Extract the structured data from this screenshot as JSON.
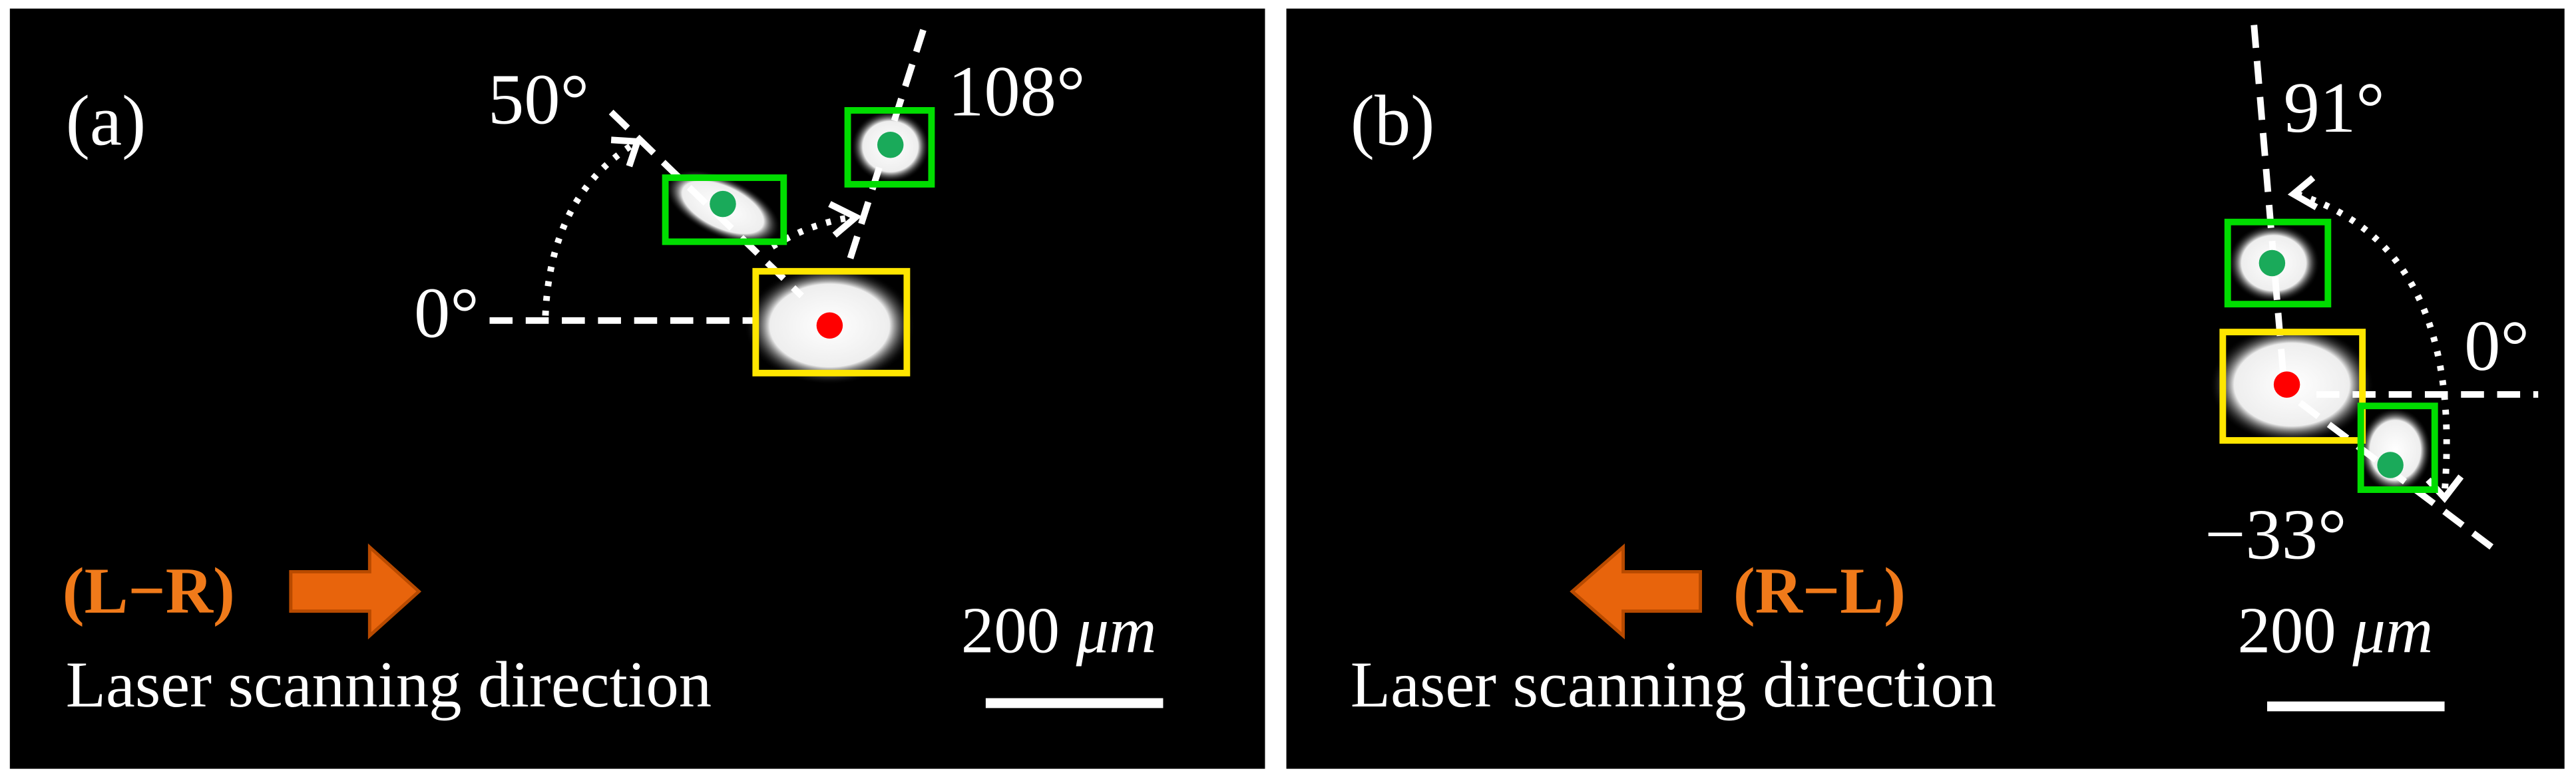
{
  "panels": [
    {
      "label": "(a)",
      "angles": [
        "50°",
        "108°",
        "0°"
      ],
      "direction": "(L−R)",
      "caption": "Laser scanning direction",
      "scale_value": "200",
      "scale_unit": "μm"
    },
    {
      "label": "(b)",
      "angles": [
        "91°",
        "0°",
        "−33°"
      ],
      "direction": "(R−L)",
      "caption": "Laser scanning direction",
      "scale_value": "200",
      "scale_unit": "μm"
    }
  ]
}
